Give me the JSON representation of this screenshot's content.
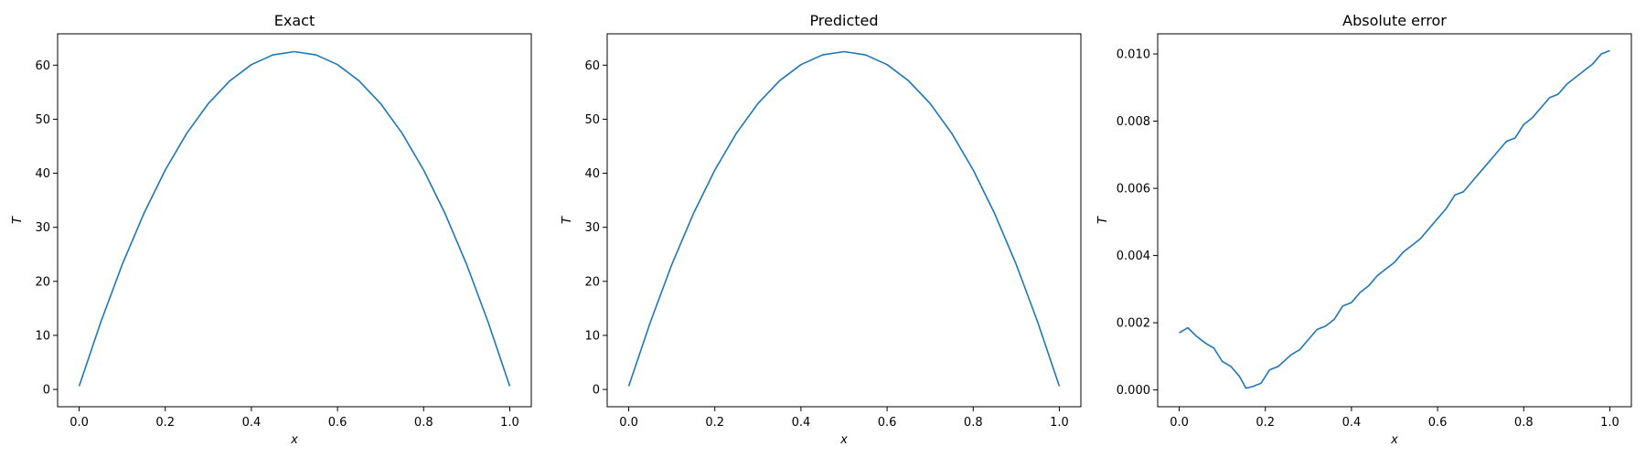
{
  "chart_data": [
    {
      "type": "line",
      "title": "Exact",
      "xlabel": "x",
      "ylabel": "T",
      "xlim": [
        -0.05,
        1.05
      ],
      "ylim": [
        -3.2,
        65.8
      ],
      "xticks": [
        "0.0",
        "0.2",
        "0.4",
        "0.6",
        "0.8",
        "1.0"
      ],
      "xtick_values": [
        0,
        0.2,
        0.4,
        0.6,
        0.8,
        1.0
      ],
      "yticks": [
        "0",
        "10",
        "20",
        "30",
        "40",
        "50",
        "60"
      ],
      "ytick_values": [
        0,
        10,
        20,
        30,
        40,
        50,
        60
      ],
      "grid": false,
      "color": "#1f77b4",
      "series": [
        {
          "x": [
            0.0,
            0.05,
            0.1,
            0.15,
            0.2,
            0.25,
            0.3,
            0.35,
            0.4,
            0.45,
            0.5,
            0.55,
            0.6,
            0.65,
            0.7,
            0.75,
            0.8,
            0.85,
            0.9,
            0.95,
            1.0
          ],
          "values": [
            0.6,
            12.4,
            23.1,
            32.5,
            40.6,
            47.4,
            52.9,
            57.1,
            60.1,
            61.9,
            62.5,
            61.9,
            60.1,
            57.1,
            52.9,
            47.4,
            40.6,
            32.5,
            23.1,
            12.4,
            0.6
          ]
        }
      ]
    },
    {
      "type": "line",
      "title": "Predicted",
      "xlabel": "x",
      "ylabel": "T",
      "xlim": [
        -0.05,
        1.05
      ],
      "ylim": [
        -3.2,
        65.8
      ],
      "xticks": [
        "0.0",
        "0.2",
        "0.4",
        "0.6",
        "0.8",
        "1.0"
      ],
      "xtick_values": [
        0,
        0.2,
        0.4,
        0.6,
        0.8,
        1.0
      ],
      "yticks": [
        "0",
        "10",
        "20",
        "30",
        "40",
        "50",
        "60"
      ],
      "ytick_values": [
        0,
        10,
        20,
        30,
        40,
        50,
        60
      ],
      "grid": false,
      "color": "#1f77b4",
      "series": [
        {
          "x": [
            0.0,
            0.05,
            0.1,
            0.15,
            0.2,
            0.25,
            0.3,
            0.35,
            0.4,
            0.45,
            0.5,
            0.55,
            0.6,
            0.65,
            0.7,
            0.75,
            0.8,
            0.85,
            0.9,
            0.95,
            1.0
          ],
          "values": [
            0.6,
            12.4,
            23.1,
            32.5,
            40.6,
            47.4,
            52.9,
            57.1,
            60.1,
            61.9,
            62.5,
            61.9,
            60.1,
            57.1,
            52.9,
            47.4,
            40.6,
            32.5,
            23.1,
            12.4,
            0.6
          ]
        }
      ]
    },
    {
      "type": "line",
      "title": "Absolute error",
      "xlabel": "x",
      "ylabel": "T",
      "xlim": [
        -0.05,
        1.05
      ],
      "ylim": [
        -0.0005,
        0.0106
      ],
      "xticks": [
        "0.0",
        "0.2",
        "0.4",
        "0.6",
        "0.8",
        "1.0"
      ],
      "xtick_values": [
        0,
        0.2,
        0.4,
        0.6,
        0.8,
        1.0
      ],
      "yticks": [
        "0.000",
        "0.002",
        "0.004",
        "0.006",
        "0.008",
        "0.010"
      ],
      "ytick_values": [
        0,
        0.002,
        0.004,
        0.006,
        0.008,
        0.01
      ],
      "grid": false,
      "color": "#1f77b4",
      "series": [
        {
          "x": [
            0.0,
            0.02,
            0.04,
            0.06,
            0.08,
            0.1,
            0.12,
            0.14,
            0.155,
            0.17,
            0.19,
            0.21,
            0.23,
            0.26,
            0.28,
            0.3,
            0.32,
            0.34,
            0.36,
            0.38,
            0.4,
            0.42,
            0.44,
            0.46,
            0.48,
            0.5,
            0.52,
            0.54,
            0.56,
            0.58,
            0.6,
            0.62,
            0.64,
            0.66,
            0.68,
            0.7,
            0.72,
            0.74,
            0.76,
            0.78,
            0.8,
            0.82,
            0.84,
            0.86,
            0.88,
            0.9,
            0.92,
            0.94,
            0.96,
            0.98,
            1.0
          ],
          "values": [
            0.0017,
            0.00185,
            0.0016,
            0.0014,
            0.00125,
            0.00085,
            0.0007,
            0.0004,
            5e-05,
            0.0001,
            0.0002,
            0.0006,
            0.0007,
            0.00105,
            0.0012,
            0.0015,
            0.0018,
            0.0019,
            0.0021,
            0.0025,
            0.0026,
            0.0029,
            0.0031,
            0.0034,
            0.0036,
            0.0038,
            0.0041,
            0.0043,
            0.0045,
            0.0048,
            0.0051,
            0.0054,
            0.0058,
            0.0059,
            0.0062,
            0.0065,
            0.0068,
            0.0071,
            0.0074,
            0.0075,
            0.0079,
            0.0081,
            0.0084,
            0.0087,
            0.0088,
            0.0091,
            0.0093,
            0.0095,
            0.0097,
            0.01,
            0.0101
          ]
        }
      ]
    }
  ]
}
